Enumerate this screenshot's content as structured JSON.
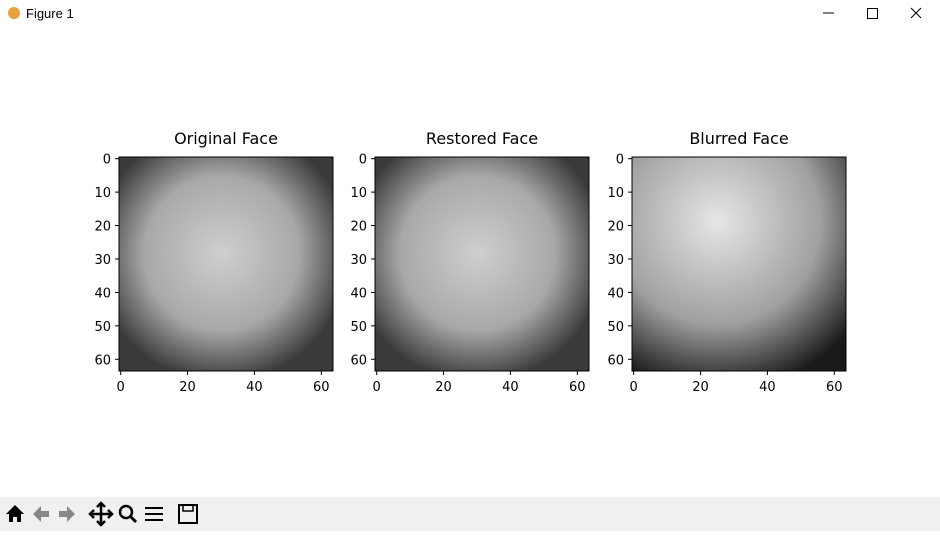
{
  "window": {
    "title": "Figure 1"
  },
  "chart_data": [
    {
      "type": "image",
      "title": "Original Face",
      "xlim": [
        -0.5,
        63.5
      ],
      "ylim": [
        63.5,
        -0.5
      ],
      "xticks": [
        0,
        20,
        40,
        60
      ],
      "yticks": [
        0,
        10,
        20,
        30,
        40,
        50,
        60
      ]
    },
    {
      "type": "image",
      "title": "Restored Face",
      "xlim": [
        -0.5,
        63.5
      ],
      "ylim": [
        63.5,
        -0.5
      ],
      "xticks": [
        0,
        20,
        40,
        60
      ],
      "yticks": [
        0,
        10,
        20,
        30,
        40,
        50,
        60
      ]
    },
    {
      "type": "image",
      "title": "Blurred Face",
      "xlim": [
        -0.5,
        63.5
      ],
      "ylim": [
        63.5,
        -0.5
      ],
      "xticks": [
        0,
        20,
        40,
        60
      ],
      "yticks": [
        0,
        10,
        20,
        30,
        40,
        50,
        60
      ]
    }
  ]
}
